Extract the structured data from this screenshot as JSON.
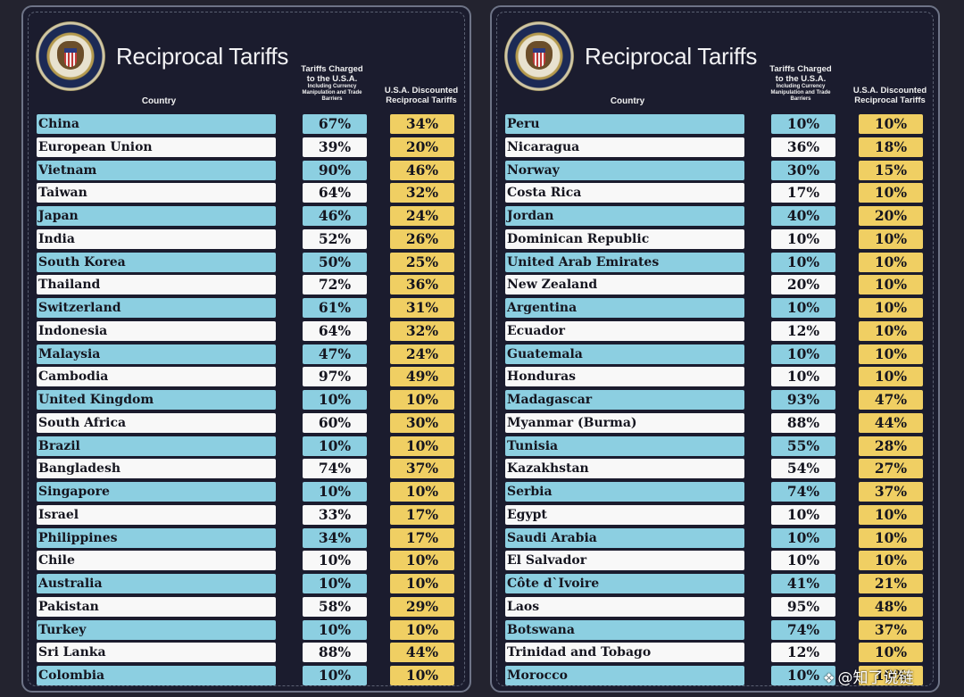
{
  "panels": [
    {
      "title": "Reciprocal Tariffs",
      "headers": {
        "country": "Country",
        "charged_main": "Tariffs Charged to the U.S.A.",
        "charged_sub": "Including Currency Manipulation and Trade Barriers",
        "discounted": "U.S.A. Discounted Reciprocal Tariffs"
      },
      "rows": [
        {
          "country": "China",
          "charged": "67%",
          "discounted": "34%"
        },
        {
          "country": "European Union",
          "charged": "39%",
          "discounted": "20%"
        },
        {
          "country": "Vietnam",
          "charged": "90%",
          "discounted": "46%"
        },
        {
          "country": "Taiwan",
          "charged": "64%",
          "discounted": "32%"
        },
        {
          "country": "Japan",
          "charged": "46%",
          "discounted": "24%"
        },
        {
          "country": "India",
          "charged": "52%",
          "discounted": "26%"
        },
        {
          "country": "South Korea",
          "charged": "50%",
          "discounted": "25%"
        },
        {
          "country": "Thailand",
          "charged": "72%",
          "discounted": "36%"
        },
        {
          "country": "Switzerland",
          "charged": "61%",
          "discounted": "31%"
        },
        {
          "country": "Indonesia",
          "charged": "64%",
          "discounted": "32%"
        },
        {
          "country": "Malaysia",
          "charged": "47%",
          "discounted": "24%"
        },
        {
          "country": "Cambodia",
          "charged": "97%",
          "discounted": "49%"
        },
        {
          "country": "United Kingdom",
          "charged": "10%",
          "discounted": "10%"
        },
        {
          "country": "South Africa",
          "charged": "60%",
          "discounted": "30%"
        },
        {
          "country": "Brazil",
          "charged": "10%",
          "discounted": "10%"
        },
        {
          "country": "Bangladesh",
          "charged": "74%",
          "discounted": "37%"
        },
        {
          "country": "Singapore",
          "charged": "10%",
          "discounted": "10%"
        },
        {
          "country": "Israel",
          "charged": "33%",
          "discounted": "17%"
        },
        {
          "country": "Philippines",
          "charged": "34%",
          "discounted": "17%"
        },
        {
          "country": "Chile",
          "charged": "10%",
          "discounted": "10%"
        },
        {
          "country": "Australia",
          "charged": "10%",
          "discounted": "10%"
        },
        {
          "country": "Pakistan",
          "charged": "58%",
          "discounted": "29%"
        },
        {
          "country": "Turkey",
          "charged": "10%",
          "discounted": "10%"
        },
        {
          "country": "Sri Lanka",
          "charged": "88%",
          "discounted": "44%"
        },
        {
          "country": "Colombia",
          "charged": "10%",
          "discounted": "10%"
        }
      ]
    },
    {
      "title": "Reciprocal Tariffs",
      "headers": {
        "country": "Country",
        "charged_main": "Tariffs Charged to the U.S.A.",
        "charged_sub": "Including Currency Manipulation and Trade Barriers",
        "discounted": "U.S.A. Discounted Reciprocal Tariffs"
      },
      "rows": [
        {
          "country": "Peru",
          "charged": "10%",
          "discounted": "10%"
        },
        {
          "country": "Nicaragua",
          "charged": "36%",
          "discounted": "18%"
        },
        {
          "country": "Norway",
          "charged": "30%",
          "discounted": "15%"
        },
        {
          "country": "Costa Rica",
          "charged": "17%",
          "discounted": "10%"
        },
        {
          "country": "Jordan",
          "charged": "40%",
          "discounted": "20%"
        },
        {
          "country": "Dominican Republic",
          "charged": "10%",
          "discounted": "10%"
        },
        {
          "country": "United Arab Emirates",
          "charged": "10%",
          "discounted": "10%"
        },
        {
          "country": "New Zealand",
          "charged": "20%",
          "discounted": "10%"
        },
        {
          "country": "Argentina",
          "charged": "10%",
          "discounted": "10%"
        },
        {
          "country": "Ecuador",
          "charged": "12%",
          "discounted": "10%"
        },
        {
          "country": "Guatemala",
          "charged": "10%",
          "discounted": "10%"
        },
        {
          "country": "Honduras",
          "charged": "10%",
          "discounted": "10%"
        },
        {
          "country": "Madagascar",
          "charged": "93%",
          "discounted": "47%"
        },
        {
          "country": "Myanmar (Burma)",
          "charged": "88%",
          "discounted": "44%"
        },
        {
          "country": "Tunisia",
          "charged": "55%",
          "discounted": "28%"
        },
        {
          "country": "Kazakhstan",
          "charged": "54%",
          "discounted": "27%"
        },
        {
          "country": "Serbia",
          "charged": "74%",
          "discounted": "37%"
        },
        {
          "country": "Egypt",
          "charged": "10%",
          "discounted": "10%"
        },
        {
          "country": "Saudi Arabia",
          "charged": "10%",
          "discounted": "10%"
        },
        {
          "country": "El Salvador",
          "charged": "10%",
          "discounted": "10%"
        },
        {
          "country": "Côte d`Ivoire",
          "charged": "41%",
          "discounted": "21%"
        },
        {
          "country": "Laos",
          "charged": "95%",
          "discounted": "48%"
        },
        {
          "country": "Botswana",
          "charged": "74%",
          "discounted": "37%"
        },
        {
          "country": "Trinidad and Tobago",
          "charged": "12%",
          "discounted": "10%"
        },
        {
          "country": "Morocco",
          "charged": "10%",
          "discounted": "10%"
        }
      ]
    }
  ],
  "watermark": "@知了说链",
  "colors": {
    "background": "#1b1c2e",
    "row_blue": "#8ccfe1",
    "row_white": "#f8f8f8",
    "discounted": "#f0cf63"
  }
}
